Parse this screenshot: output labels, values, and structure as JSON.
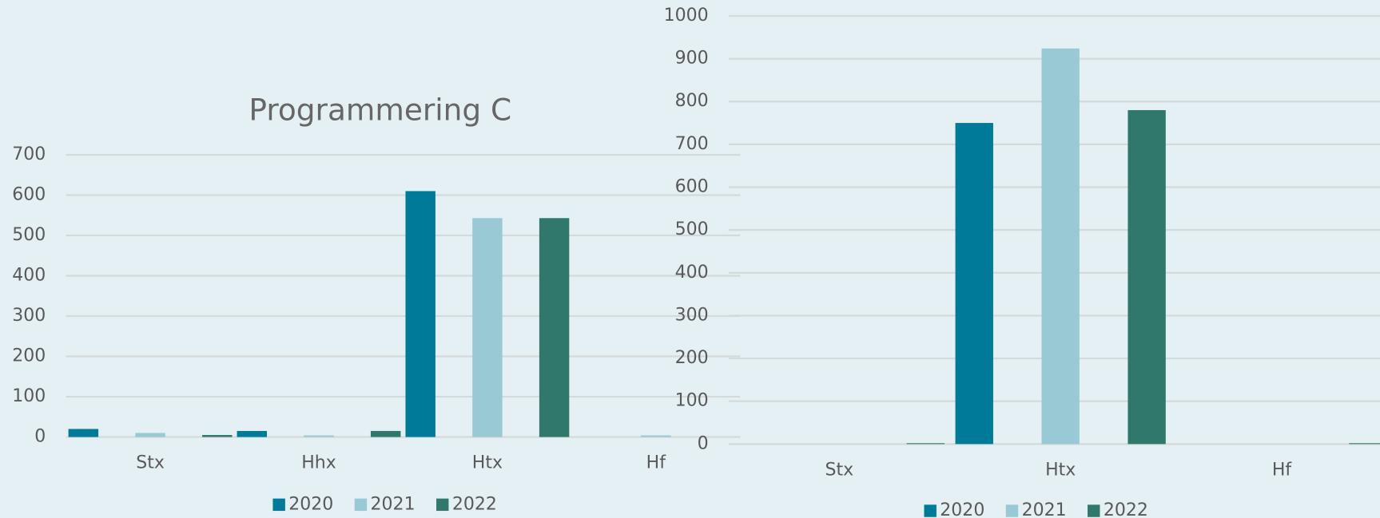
{
  "chart_data": [
    {
      "type": "bar",
      "title": "Programmering C",
      "categories": [
        "Stx",
        "Hhx",
        "Htx",
        "Hf"
      ],
      "series": [
        {
          "name": "2020",
          "color": "#007a99",
          "values": [
            20,
            15,
            610,
            0
          ]
        },
        {
          "name": "2021",
          "color": "#99c9d4",
          "values": [
            10,
            4,
            543,
            4
          ]
        },
        {
          "name": "2022",
          "color": "#31786c",
          "values": [
            5,
            15,
            543,
            0
          ]
        }
      ],
      "ylim": [
        0,
        700
      ],
      "yticks": [
        0,
        100,
        200,
        300,
        400,
        500,
        600,
        700
      ],
      "grid": true,
      "legend": "bottom"
    },
    {
      "type": "bar",
      "categories": [
        "Stx",
        "Htx",
        "Hf"
      ],
      "series": [
        {
          "name": "2020",
          "color": "#007a99",
          "values": [
            0,
            750,
            0
          ]
        },
        {
          "name": "2021",
          "color": "#99c9d4",
          "values": [
            0,
            924,
            0
          ]
        },
        {
          "name": "2022",
          "color": "#31786c",
          "values": [
            2,
            780,
            2
          ]
        }
      ],
      "ylim": [
        0,
        1000
      ],
      "yticks": [
        0,
        100,
        200,
        300,
        400,
        500,
        600,
        700,
        800,
        900,
        1000
      ],
      "grid": true,
      "legend": "bottom"
    }
  ]
}
